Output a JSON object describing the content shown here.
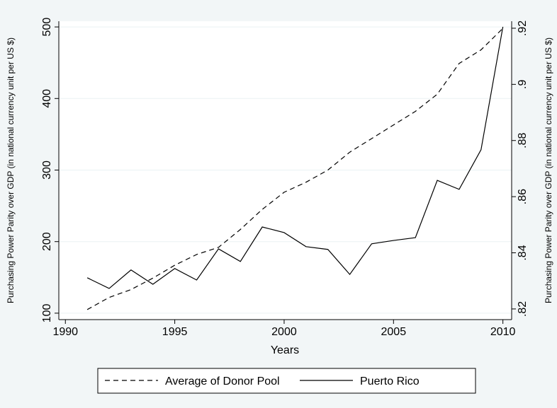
{
  "chart_data": {
    "type": "line",
    "xlabel": "Years",
    "ylabel": "Purchasing Power Parity over GDP (in national currency unit per US $)",
    "y2label": "Purchasing Power Parity over GDP (in national currency unit per US $)",
    "x": [
      1991,
      1992,
      1993,
      1994,
      1995,
      1996,
      1997,
      1998,
      1999,
      2000,
      2001,
      2002,
      2003,
      2004,
      2005,
      2006,
      2007,
      2008,
      2009,
      2010
    ],
    "xlim": [
      1989.7,
      2010.4
    ],
    "xticks": [
      1990,
      1995,
      2000,
      2005,
      2010
    ],
    "ylim": [
      91,
      508
    ],
    "yticks": [
      100,
      200,
      300,
      400,
      500
    ],
    "y2lim": [
      0.8162,
      0.9225
    ],
    "y2ticks": [
      {
        "value": 0.82,
        "label": ".82"
      },
      {
        "value": 0.84,
        "label": ".84"
      },
      {
        "value": 0.86,
        "label": ".86"
      },
      {
        "value": 0.88,
        "label": ".88"
      },
      {
        "value": 0.9,
        "label": ".9"
      },
      {
        "value": 0.92,
        "label": ".92"
      }
    ],
    "grid": true,
    "legend": "bottom",
    "series": [
      {
        "name": "Average of Donor Pool",
        "color": "#000000",
        "dash": "dashed",
        "values": [
          105,
          122,
          133,
          149,
          167,
          182,
          192,
          217,
          245,
          269,
          283,
          300,
          325,
          344,
          363,
          382,
          406,
          449,
          468,
          498
        ]
      },
      {
        "name": "Puerto Rico",
        "color": "#000000",
        "dash": "solid",
        "axis": "y2",
        "values": [
          0.8311,
          0.8273,
          0.8339,
          0.8288,
          0.8344,
          0.8303,
          0.8414,
          0.8369,
          0.8492,
          0.8472,
          0.8422,
          0.8412,
          0.8323,
          0.8432,
          0.8444,
          0.8454,
          0.8658,
          0.8626,
          0.8767,
          0.9205
        ]
      }
    ]
  }
}
